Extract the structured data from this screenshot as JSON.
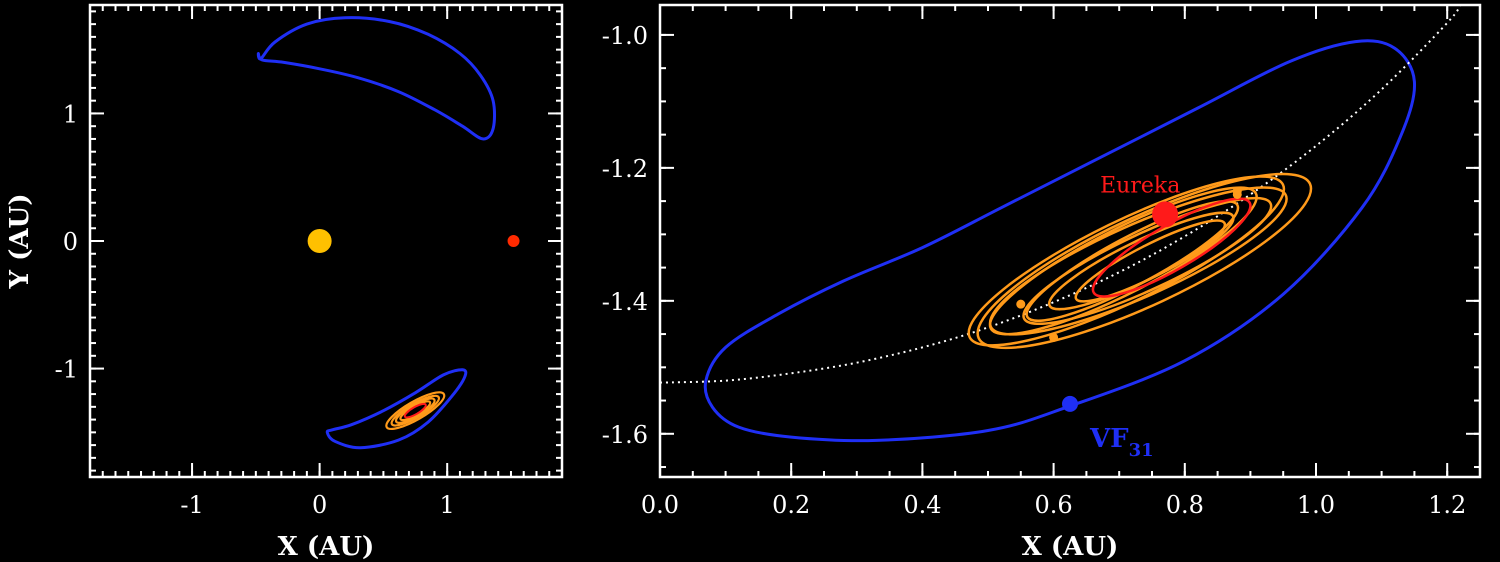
{
  "chart_data": [
    {
      "type": "line",
      "xlabel": "X (AU)",
      "ylabel": "Y (AU)",
      "xlim": [
        -1.8,
        1.9
      ],
      "ylim": [
        -1.85,
        1.85
      ],
      "xticks": [
        -1,
        0,
        1
      ],
      "yticks": [
        -1,
        0,
        1
      ],
      "xtick_labels": [
        "-1",
        "0",
        "1"
      ],
      "ytick_labels": [
        "-1",
        "0",
        "1"
      ],
      "series": [
        {
          "color": "#1f2ff5",
          "x": [
            -0.46,
            -0.35,
            -0.1,
            0.2,
            0.55,
            0.85,
            1.1,
            1.26,
            1.36,
            1.36,
            1.28,
            1.12,
            0.9,
            0.62,
            0.3,
            0.0,
            -0.28,
            -0.45,
            -0.48,
            -0.46
          ],
          "y": [
            1.43,
            1.56,
            1.7,
            1.75,
            1.72,
            1.62,
            1.47,
            1.3,
            1.1,
            0.88,
            0.8,
            0.9,
            1.03,
            1.17,
            1.28,
            1.35,
            1.4,
            1.42,
            1.47,
            1.43
          ]
        },
        {
          "color": "#1f2ff5",
          "x": [
            0.06,
            0.12,
            0.32,
            0.62,
            0.85,
            1.05,
            1.14,
            1.12,
            0.97,
            0.75,
            0.5,
            0.25,
            0.1,
            0.06
          ],
          "y": [
            -1.5,
            -1.57,
            -1.62,
            -1.56,
            -1.42,
            -1.2,
            -1.06,
            -1.01,
            -1.05,
            -1.19,
            -1.33,
            -1.44,
            -1.48,
            -1.5
          ]
        }
      ],
      "points": [
        {
          "label": "Sun",
          "x": 0,
          "y": 0,
          "color": "#ffc000"
        },
        {
          "label": "Mars",
          "x": 1.52,
          "y": 0,
          "color": "#ff2a00"
        }
      ],
      "inset_orbits_center": {
        "x": 0.75,
        "y": -1.33
      }
    },
    {
      "type": "line",
      "xlabel": "X (AU)",
      "ylabel": "",
      "xlim": [
        0.0,
        1.25
      ],
      "ylim": [
        -1.665,
        -0.955
      ],
      "xticks": [
        0.0,
        0.2,
        0.4,
        0.6,
        0.8,
        1.0,
        1.2
      ],
      "yticks": [
        -1.6,
        -1.4,
        -1.2,
        -1.0
      ],
      "xtick_labels": [
        "0.0",
        "0.2",
        "0.4",
        "0.6",
        "0.8",
        "1.0",
        "1.2"
      ],
      "ytick_labels": [
        "-1.6",
        "-1.4",
        "-1.2",
        "-1.0"
      ],
      "series": [
        {
          "name": "VF31",
          "color": "#1f2ff5",
          "x": [
            0.07,
            0.08,
            0.12,
            0.2,
            0.33,
            0.5,
            0.62,
            0.8,
            0.95,
            1.07,
            1.13,
            1.15,
            1.12,
            1.06,
            0.96,
            0.82,
            0.66,
            0.52,
            0.4,
            0.28,
            0.18,
            0.1,
            0.07
          ],
          "y": [
            -1.52,
            -1.56,
            -1.59,
            -1.605,
            -1.61,
            -1.595,
            -1.56,
            -1.49,
            -1.39,
            -1.26,
            -1.15,
            -1.07,
            -1.02,
            -1.01,
            -1.04,
            -1.11,
            -1.19,
            -1.26,
            -1.32,
            -1.37,
            -1.42,
            -1.47,
            -1.52
          ]
        },
        {
          "name": "Mars orbit",
          "color": "#ffffff",
          "x": [
            0.0,
            0.1,
            0.2,
            0.3,
            0.4,
            0.5,
            0.6,
            0.7,
            0.8,
            0.9,
            1.0,
            1.1,
            1.2,
            1.22
          ],
          "y": [
            -1.523,
            -1.52,
            -1.509,
            -1.493,
            -1.47,
            -1.44,
            -1.402,
            -1.357,
            -1.303,
            -1.24,
            -1.167,
            -1.082,
            -0.982,
            -0.955
          ]
        }
      ],
      "points": [
        {
          "label": "Eureka",
          "x": 0.77,
          "y": -1.27,
          "color": "#ff1a1a"
        },
        {
          "label": "VF",
          "subscript": "31",
          "x": 0.625,
          "y": -1.555,
          "color": "#1f2ff5"
        }
      ],
      "tadpole_center": {
        "x": 0.72,
        "y": -1.34
      },
      "tadpole_color": "#ff9a1a",
      "eureka_color": "#ff1a1a"
    }
  ]
}
